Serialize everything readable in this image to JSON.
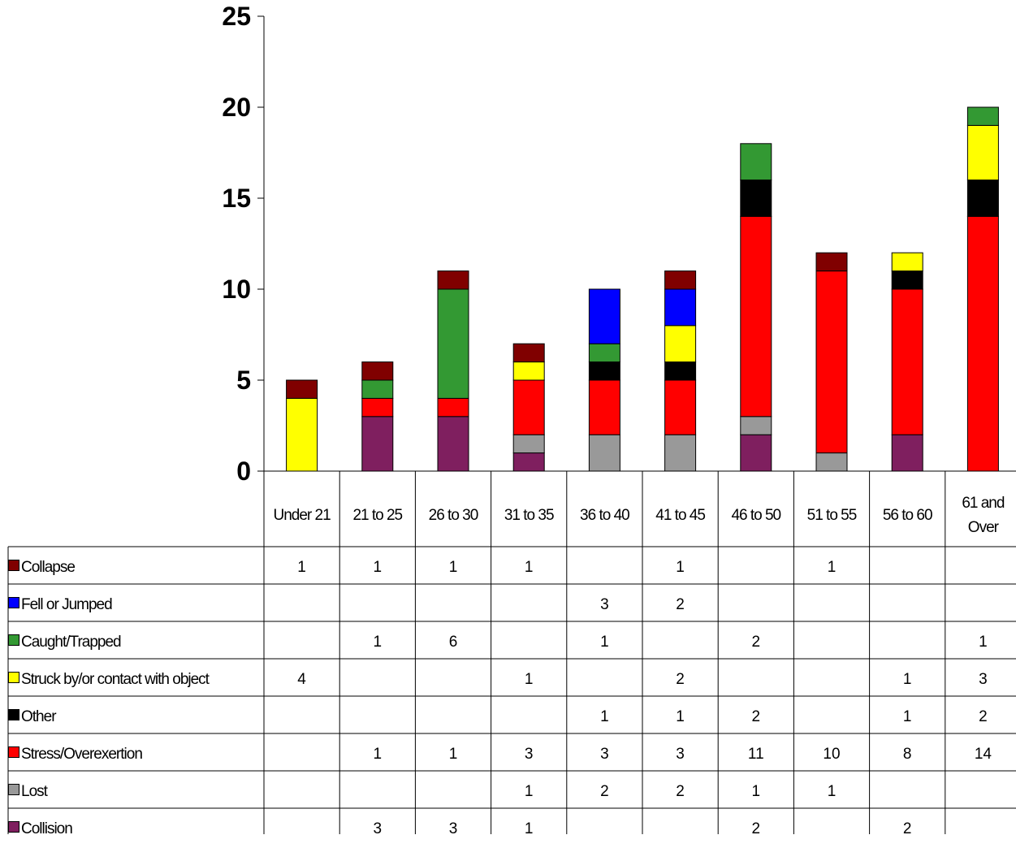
{
  "chart_data": {
    "type": "bar",
    "stacked": true,
    "categories": [
      "Under 21",
      "21 to 25",
      "26 to 30",
      "31 to 35",
      "36 to 40",
      "41 to 45",
      "46 to 50",
      "51 to 55",
      "56 to 60",
      "61 and\nOver"
    ],
    "ylim": [
      0,
      25
    ],
    "yticks": [
      "0",
      "5",
      "10",
      "15",
      "20",
      "25"
    ],
    "legend_placement": "data table below chart",
    "series": [
      {
        "name": "Collision",
        "color": "#7f1f5f",
        "values": [
          0,
          3,
          3,
          1,
          0,
          0,
          2,
          0,
          2,
          0
        ],
        "labels": [
          "",
          "3",
          "3",
          "1",
          "",
          "",
          "2",
          "",
          "2",
          ""
        ]
      },
      {
        "name": "Lost",
        "color": "#999999",
        "values": [
          0,
          0,
          0,
          1,
          2,
          2,
          1,
          1,
          0,
          0
        ],
        "labels": [
          "",
          "",
          "",
          "1",
          "2",
          "2",
          "1",
          "1",
          "",
          ""
        ]
      },
      {
        "name": "Stress/Overexertion",
        "color": "#ff0000",
        "values": [
          0,
          1,
          1,
          3,
          3,
          3,
          11,
          10,
          8,
          14
        ],
        "labels": [
          "",
          "1",
          "1",
          "3",
          "3",
          "3",
          "11",
          "10",
          "8",
          "14"
        ]
      },
      {
        "name": "Other",
        "color": "#000000",
        "values": [
          0,
          0,
          0,
          0,
          1,
          1,
          2,
          0,
          1,
          2
        ],
        "labels": [
          "",
          "",
          "",
          "",
          "1",
          "1",
          "2",
          "",
          "1",
          "2"
        ]
      },
      {
        "name": "Struck by/or contact with object",
        "color": "#ffff00",
        "values": [
          4,
          0,
          0,
          1,
          0,
          2,
          0,
          0,
          1,
          3
        ],
        "labels": [
          "4",
          "",
          "",
          "1",
          "",
          "2",
          "",
          "",
          "1",
          "3"
        ]
      },
      {
        "name": "Caught/Trapped",
        "color": "#339933",
        "values": [
          0,
          1,
          6,
          0,
          1,
          0,
          2,
          0,
          0,
          1
        ],
        "labels": [
          "",
          "1",
          "6",
          "",
          "1",
          "",
          "2",
          "",
          "",
          "1"
        ]
      },
      {
        "name": "Fell or Jumped",
        "color": "#0000ff",
        "values": [
          0,
          0,
          0,
          0,
          3,
          2,
          0,
          0,
          0,
          0
        ],
        "labels": [
          "",
          "",
          "",
          "",
          "3",
          "2",
          "",
          "",
          "",
          ""
        ]
      },
      {
        "name": "Collapse",
        "color": "#800000",
        "values": [
          1,
          1,
          1,
          1,
          0,
          1,
          0,
          1,
          0,
          0
        ],
        "labels": [
          "1",
          "1",
          "1",
          "1",
          "",
          "1",
          "",
          "1",
          "",
          ""
        ]
      }
    ]
  }
}
